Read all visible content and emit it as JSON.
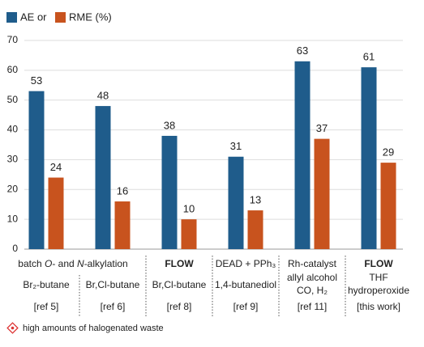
{
  "chart_data": {
    "type": "bar",
    "series": [
      {
        "name": "AE or",
        "color": "#1f5c8b",
        "label_color": "#3b74a3",
        "values": [
          53,
          48,
          38,
          31,
          63,
          61
        ]
      },
      {
        "name": "RME (%)",
        "color": "#c8531e",
        "label_color": "#e8804e",
        "values": [
          24,
          16,
          10,
          13,
          37,
          29
        ]
      }
    ],
    "category_header": {
      "segments": [
        "batch ",
        "O",
        "- and ",
        "N",
        "-alkylation"
      ],
      "italic": [
        false,
        true,
        false,
        true,
        false
      ]
    },
    "categories": [
      [
        "Br₂-butane",
        "[ref 5]"
      ],
      [
        "Br,Cl-butane",
        "[ref 6]"
      ],
      [
        "FLOW",
        "Br,Cl-butane",
        "[ref 8]"
      ],
      [
        "DEAD + PPh₃",
        "1,4-butanediol",
        "[ref 9]"
      ],
      [
        "Rh-catalyst",
        "allyl alcohol",
        "CO, H₂",
        "[ref 11]"
      ],
      [
        "FLOW",
        "THF",
        "hydroperoxide",
        "[this work]"
      ]
    ],
    "highlight_first_line": [
      false,
      false,
      true,
      false,
      false,
      true
    ],
    "highlight_color": "#1a1adb",
    "ylim": [
      0,
      70
    ],
    "yticks": [
      0,
      10,
      20,
      30,
      40,
      50,
      60,
      70
    ],
    "grid": true,
    "footnote": "high amounts of halogenated waste"
  }
}
